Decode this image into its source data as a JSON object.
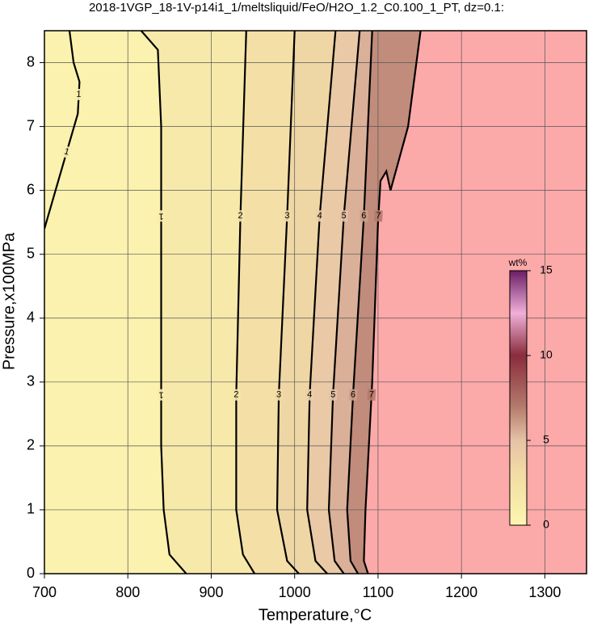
{
  "chart_data": {
    "type": "contour",
    "title": "2018-1VGP_18-1V-p14i1_1/meltsliquid/FeO/H2O_1.2_C0.100_1_PT, dz=0.1:",
    "xlabel": "Temperature,°C",
    "ylabel": "Pressure,x100MPa",
    "xlim": [
      700,
      1350
    ],
    "ylim": [
      0,
      8.5
    ],
    "xticks": [
      700,
      800,
      900,
      1000,
      1100,
      1200,
      1300
    ],
    "yticks": [
      0,
      1,
      2,
      3,
      4,
      5,
      6,
      7,
      8
    ],
    "grid": true,
    "nodata_color": "#fca9a9",
    "colorbar": {
      "label": "wt%",
      "clim": [
        0,
        15
      ],
      "ticks": [
        0,
        5,
        10,
        15
      ],
      "colormap": [
        {
          "value": 0,
          "color": "#fcf6b0"
        },
        {
          "value": 3,
          "color": "#f2dca4"
        },
        {
          "value": 5,
          "color": "#e6c2a6"
        },
        {
          "value": 7,
          "color": "#b47a6c"
        },
        {
          "value": 10,
          "color": "#8a2c3c"
        },
        {
          "value": 12.5,
          "color": "#f0b0d8"
        },
        {
          "value": 15,
          "color": "#6a1e66"
        }
      ]
    },
    "contours": [
      {
        "level": 1,
        "x": [
          700,
          720,
          740,
          742,
          735,
          730
        ],
        "y": [
          5.4,
          6.3,
          7.2,
          7.7,
          8.0,
          8.5
        ]
      },
      {
        "level": 1,
        "x": [
          816,
          836,
          840,
          840,
          843,
          850,
          870
        ],
        "y": [
          8.5,
          8.2,
          7.0,
          2.0,
          1.0,
          0.3,
          0
        ]
      },
      {
        "level": 2,
        "x": [
          942,
          935,
          930,
          930,
          938,
          952
        ],
        "y": [
          8.5,
          5.6,
          2.8,
          1.0,
          0.3,
          0
        ]
      },
      {
        "level": 3,
        "x": [
          1000,
          991,
          981,
          979,
          991,
          1005
        ],
        "y": [
          8.5,
          5.6,
          2.8,
          1.0,
          0.2,
          0
        ]
      },
      {
        "level": 4,
        "x": [
          1049,
          1030,
          1018,
          1015,
          1025,
          1039
        ],
        "y": [
          8.5,
          5.6,
          2.8,
          1.0,
          0.2,
          0
        ]
      },
      {
        "level": 5,
        "x": [
          1078,
          1059,
          1046,
          1041,
          1048,
          1059
        ],
        "y": [
          8.5,
          5.6,
          2.8,
          1.0,
          0.2,
          0
        ]
      },
      {
        "level": 6,
        "x": [
          1093,
          1083,
          1070,
          1063,
          1067,
          1076
        ],
        "y": [
          8.5,
          5.6,
          2.8,
          1.0,
          0.2,
          0
        ]
      },
      {
        "level": 7,
        "x": [
          1151,
          1136,
          1115,
          1110,
          1103,
          1100,
          1093,
          1085,
          1083,
          1088
        ],
        "y": [
          8.5,
          7.0,
          6.0,
          6.3,
          6.15,
          5.5,
          3.0,
          1.0,
          0.2,
          0
        ]
      }
    ]
  }
}
